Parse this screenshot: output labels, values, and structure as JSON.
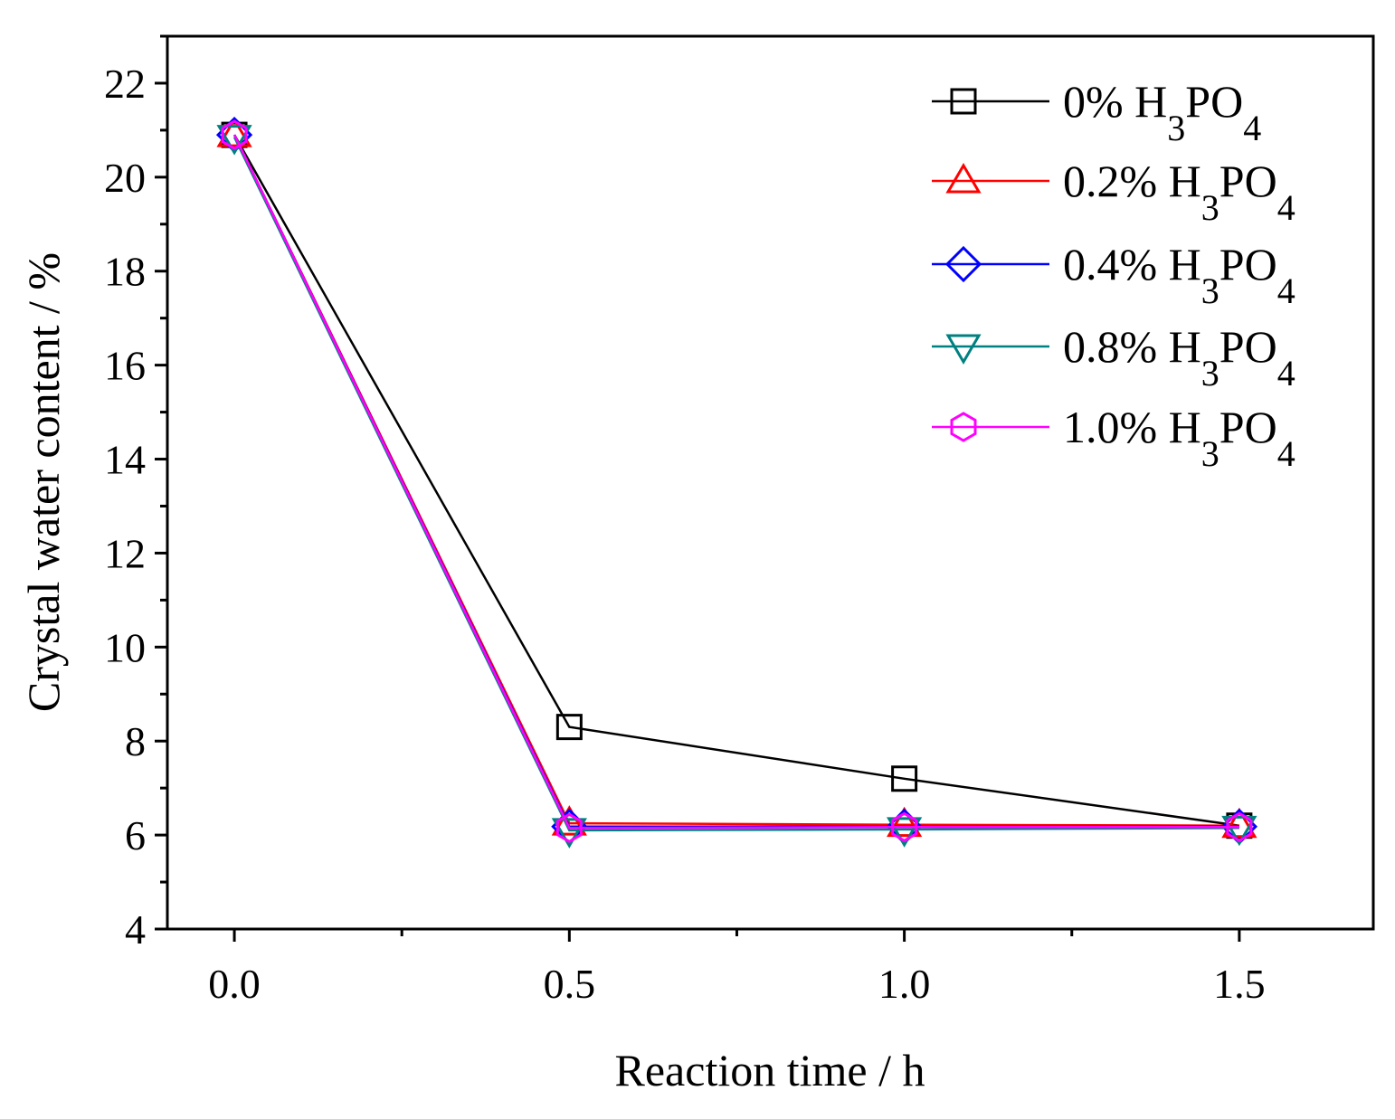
{
  "chart_data": {
    "type": "line",
    "title": "",
    "xlabel": "Reaction time / h",
    "ylabel": "Crystal water content / %",
    "x": [
      0.0,
      0.5,
      1.0,
      1.5
    ],
    "x_tick_labels": [
      "0.0",
      "0.5",
      "1.0",
      "1.5"
    ],
    "y_tick_labels": [
      "4",
      "6",
      "8",
      "10",
      "12",
      "14",
      "16",
      "18",
      "20",
      "22"
    ],
    "xlim": [
      -0.1,
      1.7
    ],
    "ylim": [
      4,
      23
    ],
    "grid": false,
    "legend_position": "top-right",
    "series": [
      {
        "name": "0% H3PO4",
        "label_parts": [
          "0% H",
          "3",
          "PO",
          "4"
        ],
        "marker": "square",
        "color": "#000000",
        "values": [
          20.9,
          8.3,
          7.2,
          6.2
        ]
      },
      {
        "name": "0.2% H3PO4",
        "label_parts": [
          "0.2% H",
          "3",
          "PO",
          "4"
        ],
        "marker": "triangle-up",
        "color": "#ff0000",
        "values": [
          20.9,
          6.25,
          6.22,
          6.2
        ]
      },
      {
        "name": "0.4% H3PO4",
        "label_parts": [
          "0.4% H",
          "3",
          "PO",
          "4"
        ],
        "marker": "diamond",
        "color": "#0000ff",
        "values": [
          20.9,
          6.18,
          6.18,
          6.18
        ]
      },
      {
        "name": "0.8% H3PO4",
        "label_parts": [
          "0.8% H",
          "3",
          "PO",
          "4"
        ],
        "marker": "triangle-down",
        "color": "#008080",
        "values": [
          20.85,
          6.1,
          6.12,
          6.15
        ]
      },
      {
        "name": "1.0% H3PO4",
        "label_parts": [
          "1.0% H",
          "3",
          "PO",
          "4"
        ],
        "marker": "hexagon",
        "color": "#ff00ff",
        "values": [
          20.9,
          6.15,
          6.17,
          6.17
        ]
      }
    ]
  }
}
